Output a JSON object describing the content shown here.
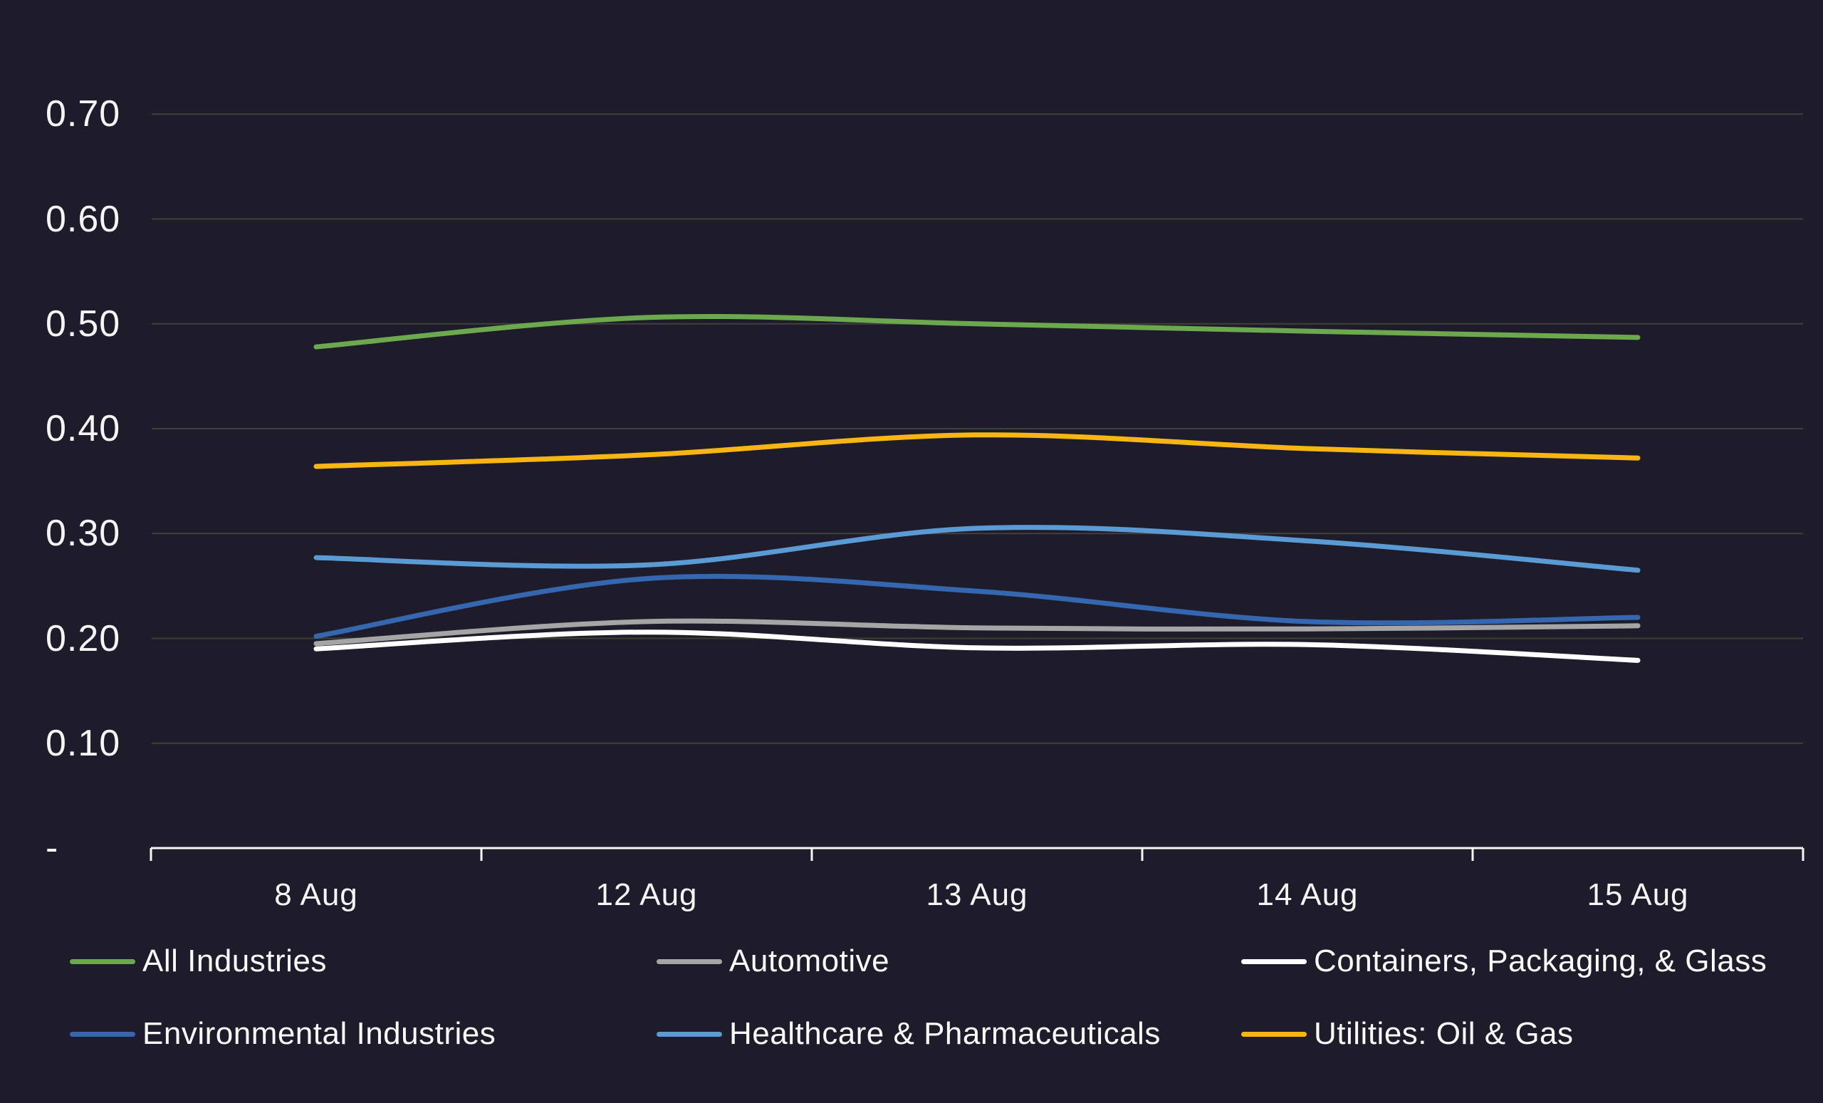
{
  "chart_data": {
    "type": "line",
    "title": "",
    "xlabel": "",
    "ylabel": "",
    "grid": true,
    "legend_position": "bottom",
    "ylim": [
      0,
      0.7
    ],
    "categories": [
      "8 Aug",
      "12 Aug",
      "13 Aug",
      "14 Aug",
      "15 Aug"
    ],
    "y_ticks": [
      {
        "label": "0.70",
        "value": 0.7
      },
      {
        "label": "0.60",
        "value": 0.6
      },
      {
        "label": "0.50",
        "value": 0.5
      },
      {
        "label": "0.40",
        "value": 0.4
      },
      {
        "label": "0.30",
        "value": 0.3
      },
      {
        "label": "0.20",
        "value": 0.2
      },
      {
        "label": "0.10",
        "value": 0.1
      },
      {
        "label": "-",
        "value": 0.0
      }
    ],
    "series": [
      {
        "name": "All Industries",
        "color": "#6CA84D",
        "values": [
          0.478,
          0.506,
          0.5,
          0.493,
          0.487
        ]
      },
      {
        "name": "Automotive",
        "color": "#A5A5A5",
        "values": [
          0.195,
          0.216,
          0.21,
          0.209,
          0.212
        ]
      },
      {
        "name": "Containers, Packaging, & Glass",
        "color": "#FFFFFF",
        "values": [
          0.19,
          0.206,
          0.191,
          0.194,
          0.179
        ]
      },
      {
        "name": "Environmental Industries",
        "color": "#3566B0",
        "values": [
          0.202,
          0.257,
          0.245,
          0.216,
          0.22
        ]
      },
      {
        "name": "Healthcare & Pharmaceuticals",
        "color": "#5B9BD5",
        "values": [
          0.277,
          0.27,
          0.305,
          0.293,
          0.265
        ]
      },
      {
        "name": "Utilities: Oil & Gas",
        "color": "#F9B511",
        "values": [
          0.364,
          0.375,
          0.394,
          0.381,
          0.372
        ]
      }
    ]
  },
  "colors": {
    "background": "#1E1C2B",
    "gridline": "#413F3A",
    "axis": "#F5F5F5",
    "text": "#F5F5F5"
  }
}
